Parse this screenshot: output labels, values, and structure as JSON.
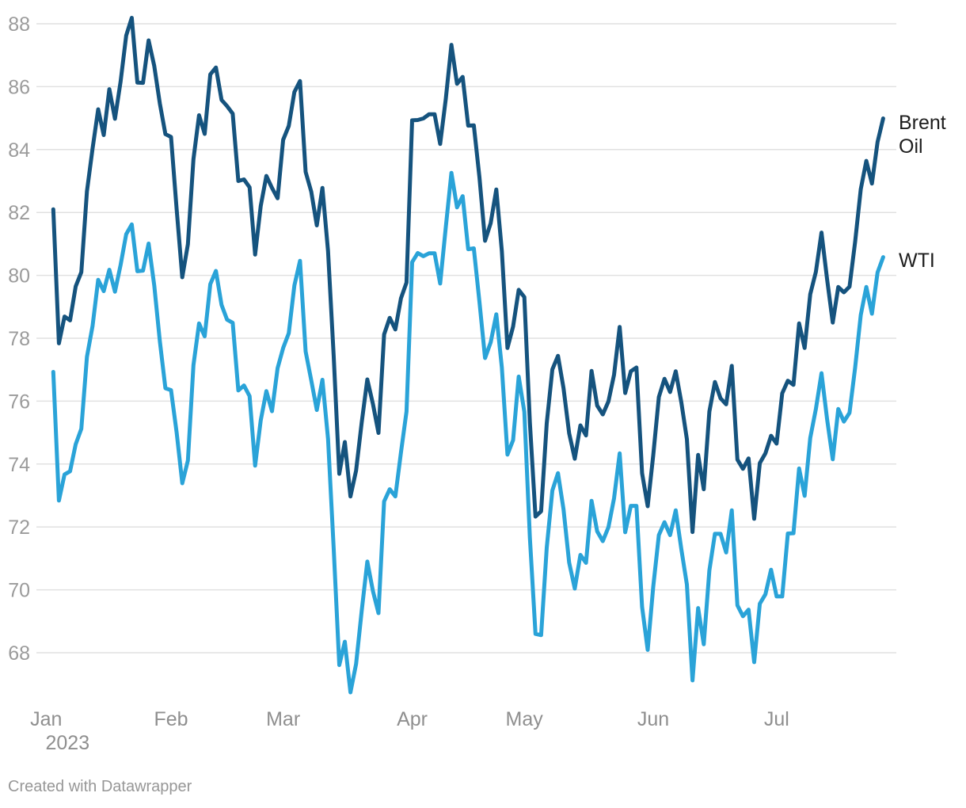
{
  "chart_data": {
    "type": "line",
    "title": "",
    "x_axis": {
      "tick_labels": [
        "Jan",
        "Feb",
        "Mar",
        "Apr",
        "May",
        "Jun",
        "Jul"
      ],
      "year_label": "2023",
      "range_start": "2023-01-03",
      "range_end": "2023-07-28"
    },
    "y_axis": {
      "ticks": [
        68,
        70,
        72,
        74,
        76,
        78,
        80,
        82,
        84,
        86,
        88
      ],
      "range": [
        66.5,
        88.5
      ],
      "grid": true
    },
    "legend_position": "line-end-labels-right",
    "dates": [
      "2023-01-03",
      "2023-01-04",
      "2023-01-05",
      "2023-01-06",
      "2023-01-09",
      "2023-01-10",
      "2023-01-11",
      "2023-01-12",
      "2023-01-13",
      "2023-01-16",
      "2023-01-17",
      "2023-01-18",
      "2023-01-19",
      "2023-01-20",
      "2023-01-23",
      "2023-01-24",
      "2023-01-25",
      "2023-01-26",
      "2023-01-27",
      "2023-01-30",
      "2023-01-31",
      "2023-02-01",
      "2023-02-02",
      "2023-02-03",
      "2023-02-06",
      "2023-02-07",
      "2023-02-08",
      "2023-02-09",
      "2023-02-10",
      "2023-02-13",
      "2023-02-14",
      "2023-02-15",
      "2023-02-16",
      "2023-02-17",
      "2023-02-20",
      "2023-02-21",
      "2023-02-22",
      "2023-02-23",
      "2023-02-24",
      "2023-02-27",
      "2023-02-28",
      "2023-03-01",
      "2023-03-02",
      "2023-03-03",
      "2023-03-06",
      "2023-03-07",
      "2023-03-08",
      "2023-03-09",
      "2023-03-10",
      "2023-03-13",
      "2023-03-14",
      "2023-03-15",
      "2023-03-16",
      "2023-03-17",
      "2023-03-20",
      "2023-03-21",
      "2023-03-22",
      "2023-03-23",
      "2023-03-24",
      "2023-03-27",
      "2023-03-28",
      "2023-03-29",
      "2023-03-30",
      "2023-03-31",
      "2023-04-03",
      "2023-04-04",
      "2023-04-05",
      "2023-04-06",
      "2023-04-07",
      "2023-04-10",
      "2023-04-11",
      "2023-04-12",
      "2023-04-13",
      "2023-04-14",
      "2023-04-17",
      "2023-04-18",
      "2023-04-19",
      "2023-04-20",
      "2023-04-21",
      "2023-04-24",
      "2023-04-25",
      "2023-04-26",
      "2023-04-27",
      "2023-04-28",
      "2023-05-01",
      "2023-05-02",
      "2023-05-03",
      "2023-05-04",
      "2023-05-05",
      "2023-05-08",
      "2023-05-09",
      "2023-05-10",
      "2023-05-11",
      "2023-05-12",
      "2023-05-15",
      "2023-05-16",
      "2023-05-17",
      "2023-05-18",
      "2023-05-19",
      "2023-05-22",
      "2023-05-23",
      "2023-05-24",
      "2023-05-25",
      "2023-05-26",
      "2023-05-29",
      "2023-05-30",
      "2023-05-31",
      "2023-06-01",
      "2023-06-02",
      "2023-06-05",
      "2023-06-06",
      "2023-06-07",
      "2023-06-08",
      "2023-06-09",
      "2023-06-12",
      "2023-06-13",
      "2023-06-14",
      "2023-06-15",
      "2023-06-16",
      "2023-06-19",
      "2023-06-20",
      "2023-06-21",
      "2023-06-22",
      "2023-06-23",
      "2023-06-26",
      "2023-06-27",
      "2023-06-28",
      "2023-06-29",
      "2023-06-30",
      "2023-07-03",
      "2023-07-04",
      "2023-07-05",
      "2023-07-06",
      "2023-07-07",
      "2023-07-10",
      "2023-07-11",
      "2023-07-12",
      "2023-07-13",
      "2023-07-14",
      "2023-07-17",
      "2023-07-18",
      "2023-07-19",
      "2023-07-20",
      "2023-07-21",
      "2023-07-24",
      "2023-07-25",
      "2023-07-26",
      "2023-07-27",
      "2023-07-28"
    ],
    "series": [
      {
        "name": "Brent Oil",
        "label_lines": [
          "Brent",
          "Oil"
        ],
        "color": "#15537E",
        "values": [
          82.1,
          77.84,
          78.69,
          78.57,
          79.65,
          80.1,
          82.67,
          84.03,
          85.28,
          84.46,
          85.92,
          84.98,
          86.16,
          87.63,
          88.19,
          86.13,
          86.12,
          87.47,
          86.66,
          85.46,
          84.49,
          84.4,
          82.1,
          79.94,
          80.99,
          83.69,
          85.09,
          84.5,
          86.39,
          86.61,
          85.58,
          85.38,
          85.14,
          83.0,
          83.05,
          82.8,
          80.66,
          82.21,
          83.16,
          82.78,
          82.45,
          84.31,
          84.75,
          85.83,
          86.18,
          83.29,
          82.66,
          81.59,
          82.78,
          80.77,
          77.45,
          73.69,
          74.7,
          72.97,
          73.79,
          75.32,
          76.69,
          75.91,
          74.99,
          78.12,
          78.65,
          78.28,
          79.27,
          79.77,
          84.93,
          84.94,
          84.99,
          85.12,
          85.12,
          84.18,
          85.61,
          87.33,
          86.09,
          86.31,
          84.76,
          84.77,
          83.12,
          81.1,
          81.66,
          82.73,
          80.77,
          77.69,
          78.37,
          79.54,
          79.31,
          75.32,
          72.33,
          72.5,
          75.3,
          77.01,
          77.44,
          76.41,
          74.98,
          74.17,
          75.23,
          74.91,
          76.96,
          75.86,
          75.58,
          75.99,
          76.84,
          78.36,
          76.26,
          76.95,
          77.07,
          73.71,
          72.66,
          74.28,
          76.13,
          76.71,
          76.29,
          76.95,
          75.96,
          74.79,
          71.84,
          74.29,
          73.2,
          75.67,
          76.61,
          76.09,
          75.9,
          77.12,
          74.14,
          73.85,
          74.18,
          72.26,
          74.03,
          74.34,
          74.9,
          74.65,
          76.25,
          76.65,
          76.52,
          78.47,
          77.69,
          79.4,
          80.11,
          81.36,
          79.87,
          78.5,
          79.63,
          79.46,
          79.64,
          81.07,
          82.74,
          83.64,
          82.92,
          84.24,
          84.99
        ]
      },
      {
        "name": "WTI",
        "label_lines": [
          "WTI"
        ],
        "color": "#2AA3D8",
        "values": [
          76.93,
          72.84,
          73.67,
          73.77,
          74.63,
          75.12,
          77.41,
          78.39,
          79.86,
          79.5,
          80.18,
          79.48,
          80.33,
          81.31,
          81.62,
          80.13,
          80.15,
          81.01,
          79.68,
          77.9,
          76.41,
          76.35,
          75.0,
          73.39,
          74.11,
          77.14,
          78.47,
          78.06,
          79.72,
          80.14,
          79.06,
          78.59,
          78.49,
          76.34,
          76.5,
          76.16,
          73.95,
          75.39,
          76.32,
          75.68,
          77.05,
          77.69,
          78.16,
          79.68,
          80.46,
          77.58,
          76.66,
          75.72,
          76.68,
          74.8,
          71.33,
          67.61,
          68.35,
          66.74,
          67.64,
          69.33,
          70.9,
          69.96,
          69.26,
          72.81,
          73.2,
          72.97,
          74.37,
          75.67,
          80.42,
          80.71,
          80.61,
          80.7,
          80.7,
          79.74,
          81.53,
          83.26,
          82.16,
          82.52,
          80.83,
          80.86,
          79.16,
          77.37,
          77.87,
          78.76,
          77.07,
          74.3,
          74.76,
          76.78,
          75.66,
          71.66,
          68.6,
          68.56,
          71.34,
          73.16,
          73.71,
          72.56,
          70.87,
          70.04,
          71.11,
          70.86,
          72.83,
          71.86,
          71.55,
          71.99,
          72.91,
          74.34,
          71.83,
          72.67,
          72.67,
          69.46,
          68.09,
          70.1,
          71.74,
          72.15,
          71.74,
          72.53,
          71.29,
          70.17,
          67.12,
          69.42,
          68.27,
          70.62,
          71.78,
          71.78,
          71.19,
          72.53,
          69.51,
          69.16,
          69.37,
          67.7,
          69.56,
          69.86,
          70.64,
          69.79,
          69.79,
          71.79,
          71.8,
          73.86,
          72.99,
          74.83,
          75.75,
          76.89,
          75.42,
          74.15,
          75.75,
          75.35,
          75.63,
          77.07,
          78.74,
          79.63,
          78.78,
          80.09,
          80.58
        ]
      }
    ]
  },
  "colors": {
    "brent": "#15537E",
    "wti": "#2AA3D8",
    "grid": "#E1E1E1",
    "y_tick_text": "#9B9B9B",
    "x_tick_text": "#8F8F8F",
    "series_label_text": "#1D1D1D",
    "footer_text": "#979797",
    "background": "#FFFFFF"
  },
  "footer": {
    "text": "Created with Datawrapper"
  }
}
